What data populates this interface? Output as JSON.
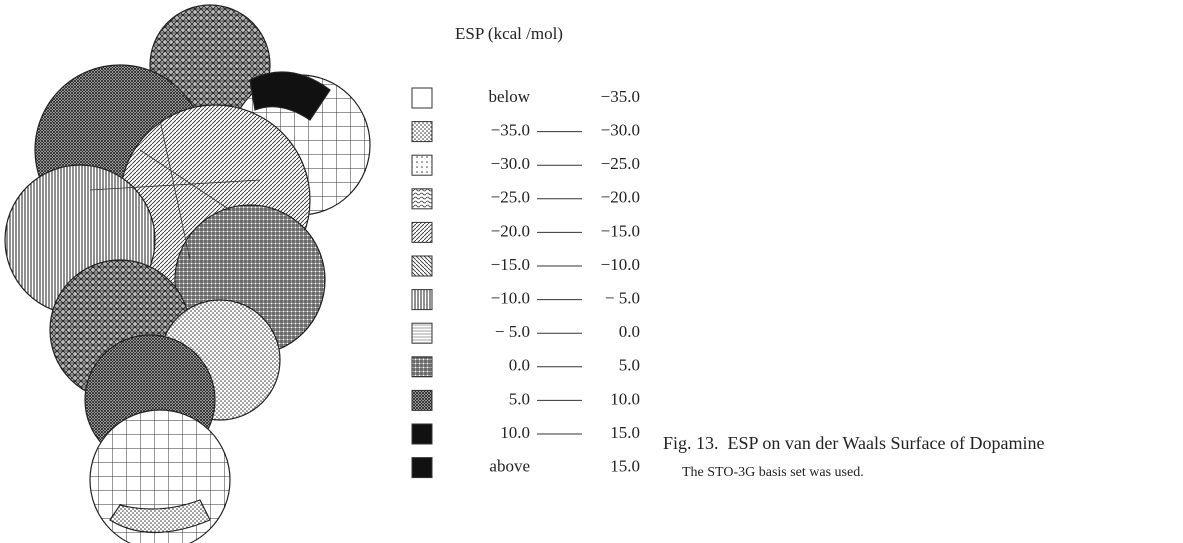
{
  "legend": {
    "title": "ESP (kcal /mol)",
    "rows": [
      {
        "from": "below",
        "to": "−35.0"
      },
      {
        "from": "−35.0",
        "to": "−30.0"
      },
      {
        "from": "−30.0",
        "to": "−25.0"
      },
      {
        "from": "−25.0",
        "to": "−20.0"
      },
      {
        "from": "−20.0",
        "to": "−15.0"
      },
      {
        "from": "−15.0",
        "to": "−10.0"
      },
      {
        "from": "−10.0",
        "to": "− 5.0"
      },
      {
        "from": "− 5.0",
        "to": "0.0"
      },
      {
        "from": "0.0",
        "to": "5.0"
      },
      {
        "from": "5.0",
        "to": "10.0"
      },
      {
        "from": "10.0",
        "to": "15.0"
      },
      {
        "from": "above",
        "to": "15.0"
      }
    ]
  },
  "caption": {
    "label": "Fig. 13.",
    "title": "ESP on van der Waals Surface of Dopamine",
    "note": "The STO-3G basis set was used."
  }
}
